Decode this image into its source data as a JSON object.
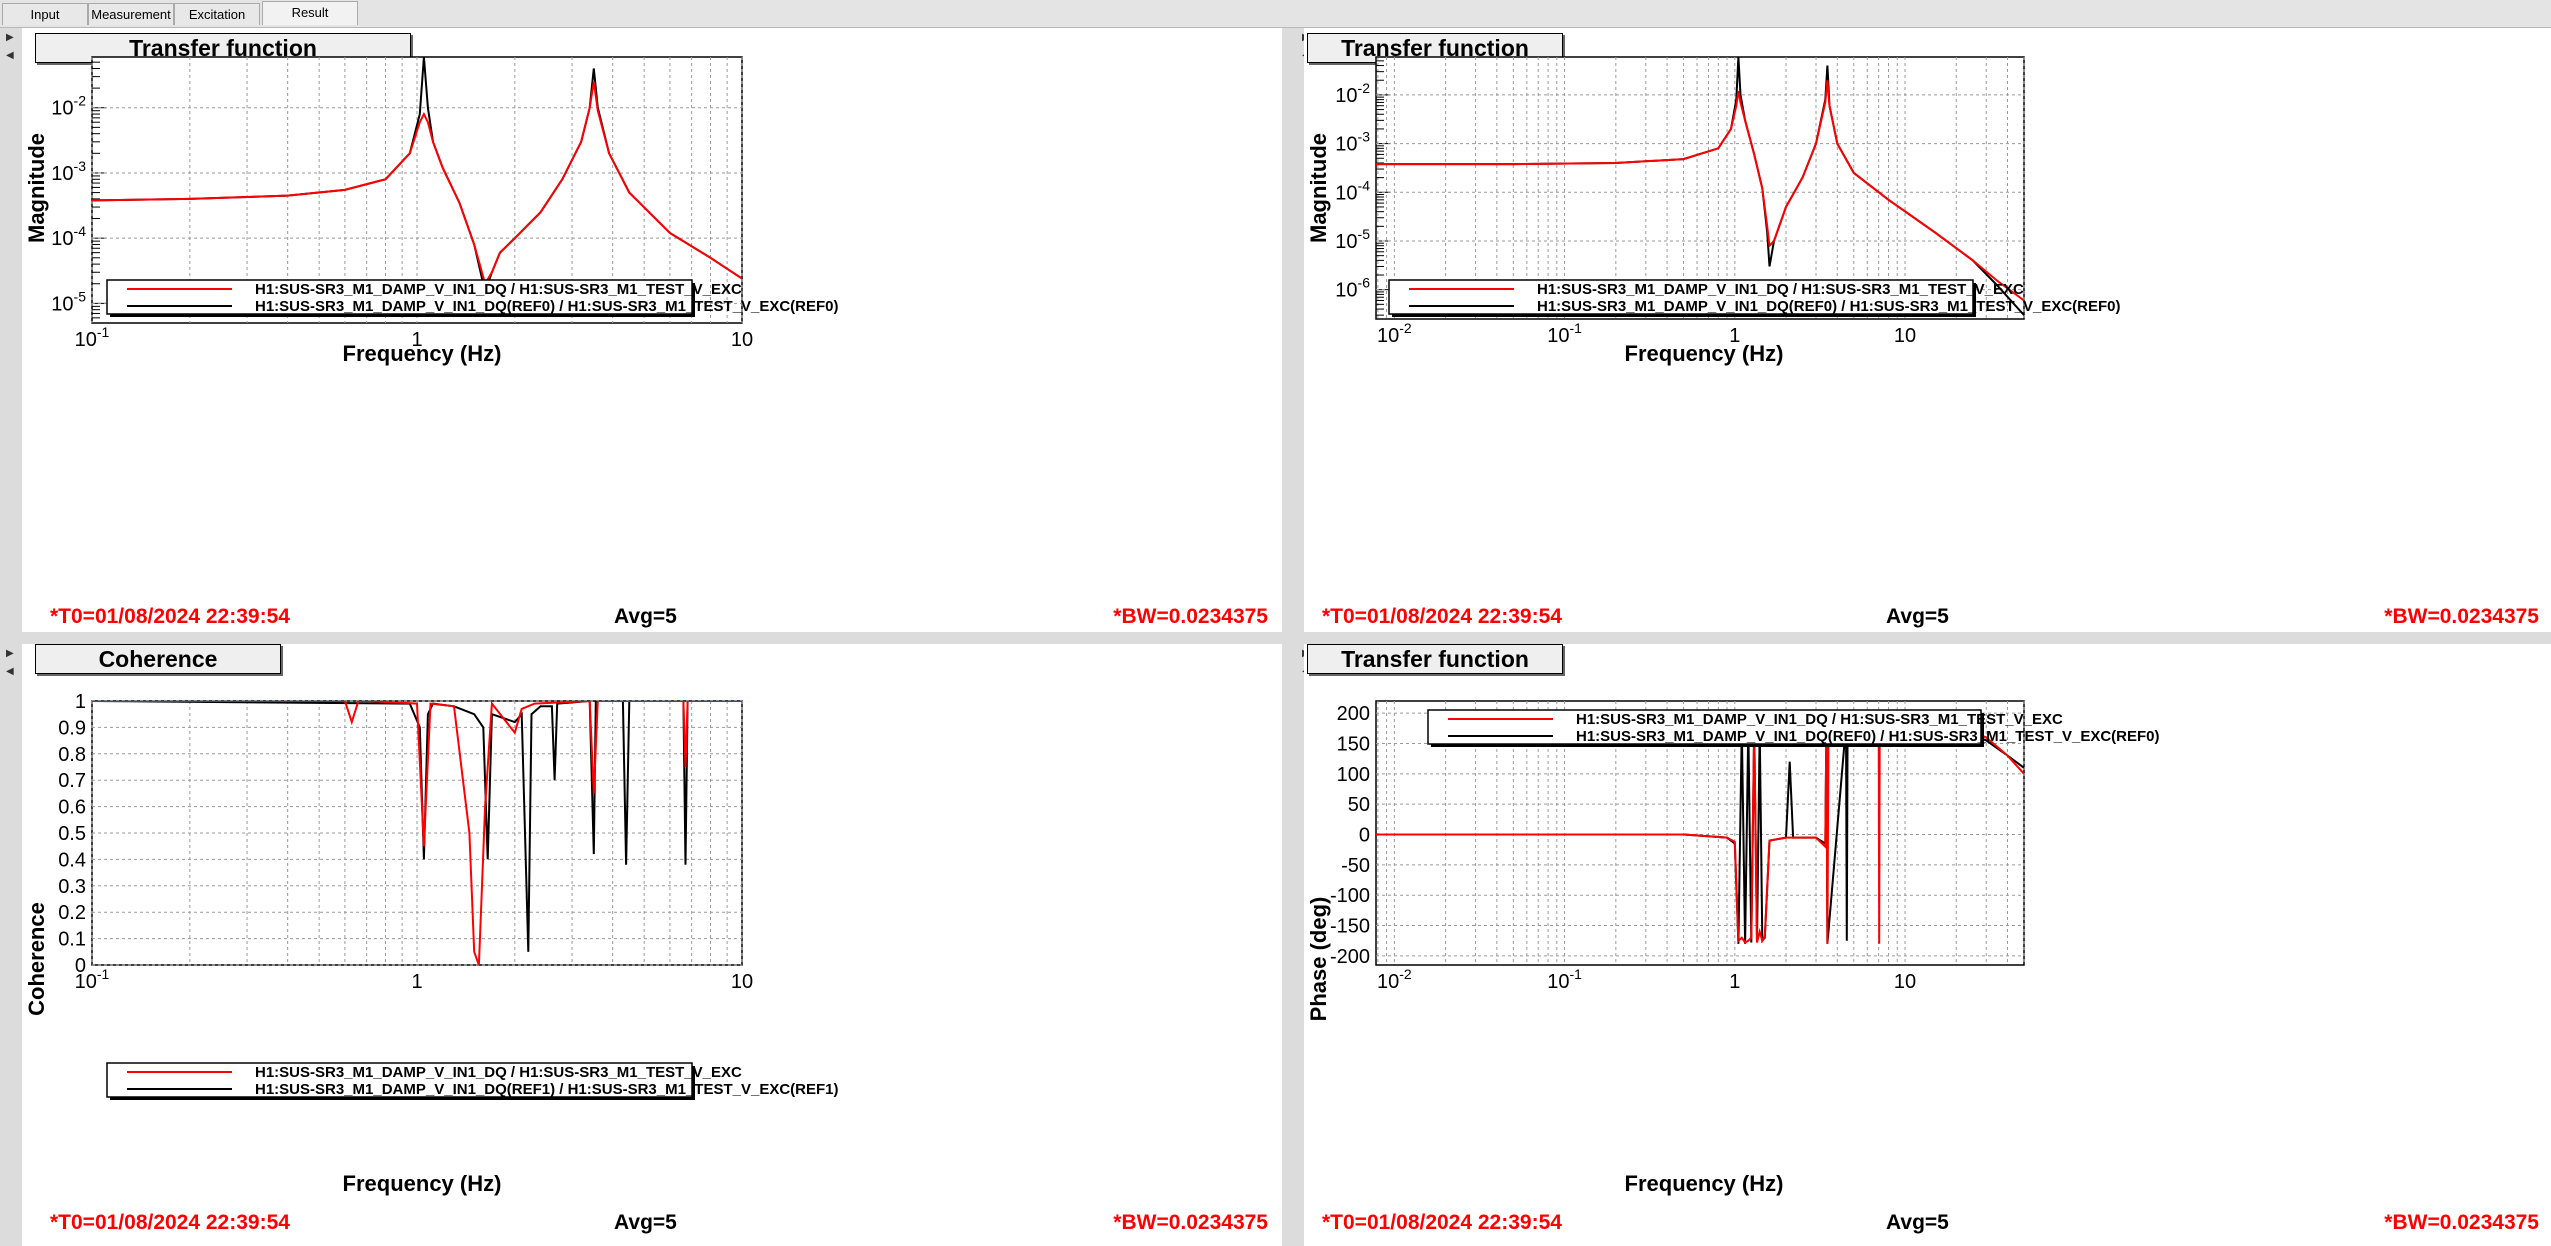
{
  "tabs": [
    {
      "label": "Input",
      "active": false
    },
    {
      "label": "Measurement",
      "active": false
    },
    {
      "label": "Excitation",
      "active": false
    },
    {
      "label": "Result",
      "active": true
    }
  ],
  "colors": {
    "ref": "#000000",
    "live": "#ff0000",
    "grid": "#9a9a9a",
    "status": "#ff0000"
  },
  "panels": [
    {
      "title": "Transfer function",
      "status": {
        "t0": "*T0=01/08/2024 22:39:54",
        "avg": "Avg=5",
        "bw": "*BW=0.0234375"
      },
      "legend": [
        "H1:SUS-SR3_M1_DAMP_V_IN1_DQ / H1:SUS-SR3_M1_TEST_V_EXC",
        "H1:SUS-SR3_M1_DAMP_V_IN1_DQ(REF0) / H1:SUS-SR3_M1_TEST_V_EXC(REF0)"
      ],
      "chart_data": {
        "type": "line",
        "xlabel": "Frequency (Hz)",
        "ylabel": "Magnitude",
        "xscale": "log",
        "yscale": "log",
        "xlim": [
          0.1,
          10
        ],
        "ylim": [
          5e-06,
          0.06
        ],
        "xticks": [
          {
            "v": 0.1,
            "label": "10^-1"
          },
          {
            "v": 1,
            "label": "1"
          },
          {
            "v": 10,
            "label": "10"
          }
        ],
        "yticks": [
          {
            "v": 1e-05,
            "label": "10^-5"
          },
          {
            "v": 0.0001,
            "label": "10^-4"
          },
          {
            "v": 0.001,
            "label": "10^-3"
          },
          {
            "v": 0.01,
            "label": "10^-2"
          }
        ],
        "legend_position": "bottom",
        "series": [
          {
            "name": "H1:SUS-SR3_M1_DAMP_V_IN1_DQ(REF0) / H1:SUS-SR3_M1_TEST_V_EXC(REF0)",
            "color": "#000000",
            "x": [
              0.1,
              0.2,
              0.4,
              0.6,
              0.8,
              0.95,
              1.02,
              1.05,
              1.08,
              1.12,
              1.2,
              1.35,
              1.5,
              1.62,
              1.7,
              1.8,
              2.0,
              2.4,
              2.8,
              3.2,
              3.4,
              3.5,
              3.6,
              3.9,
              4.5,
              6,
              8,
              10
            ],
            "y": [
              0.00038,
              0.0004,
              0.00045,
              0.00055,
              0.0008,
              0.002,
              0.008,
              0.06,
              0.01,
              0.003,
              0.0012,
              0.00035,
              8e-05,
              1.5e-05,
              3e-05,
              6e-05,
              0.0001,
              0.00025,
              0.0008,
              0.003,
              0.01,
              0.04,
              0.01,
              0.002,
              0.0005,
              0.00012,
              5e-05,
              2.4e-05
            ]
          },
          {
            "name": "H1:SUS-SR3_M1_DAMP_V_IN1_DQ / H1:SUS-SR3_M1_TEST_V_EXC",
            "color": "#ff0000",
            "x": [
              0.1,
              0.2,
              0.4,
              0.6,
              0.8,
              0.95,
              1.02,
              1.05,
              1.08,
              1.12,
              1.2,
              1.35,
              1.5,
              1.62,
              1.7,
              1.8,
              2.0,
              2.4,
              2.8,
              3.2,
              3.4,
              3.5,
              3.6,
              3.9,
              4.5,
              6,
              8,
              10
            ],
            "y": [
              0.00038,
              0.0004,
              0.00045,
              0.00055,
              0.0008,
              0.002,
              0.006,
              0.008,
              0.006,
              0.003,
              0.0012,
              0.00035,
              8e-05,
              2e-05,
              3e-05,
              6e-05,
              0.0001,
              0.00025,
              0.0008,
              0.003,
              0.01,
              0.025,
              0.009,
              0.002,
              0.0005,
              0.00012,
              5e-05,
              2.4e-05
            ]
          }
        ]
      }
    },
    {
      "title": "Transfer function",
      "status": {
        "t0": "*T0=01/08/2024 22:39:54",
        "avg": "Avg=5",
        "bw": "*BW=0.0234375"
      },
      "legend": [
        "H1:SUS-SR3_M1_DAMP_V_IN1_DQ / H1:SUS-SR3_M1_TEST_V_EXC",
        "H1:SUS-SR3_M1_DAMP_V_IN1_DQ(REF0) / H1:SUS-SR3_M1_TEST_V_EXC(REF0)"
      ],
      "chart_data": {
        "type": "line",
        "xlabel": "Frequency (Hz)",
        "ylabel": "Magnitude",
        "xscale": "log",
        "yscale": "log",
        "xlim": [
          0.0078,
          50
        ],
        "ylim": [
          2.5e-07,
          0.06
        ],
        "xticks": [
          {
            "v": 0.01,
            "label": "10^-2"
          },
          {
            "v": 0.1,
            "label": "10^-1"
          },
          {
            "v": 1,
            "label": "1"
          },
          {
            "v": 10,
            "label": "10"
          }
        ],
        "yticks": [
          {
            "v": 1e-06,
            "label": "10^-6"
          },
          {
            "v": 1e-05,
            "label": "10^-5"
          },
          {
            "v": 0.0001,
            "label": "10^-4"
          },
          {
            "v": 0.001,
            "label": "10^-3"
          },
          {
            "v": 0.01,
            "label": "10^-2"
          }
        ],
        "legend_position": "bottom",
        "series": [
          {
            "name": "H1:SUS-SR3_M1_DAMP_V_IN1_DQ(REF0) / H1:SUS-SR3_M1_TEST_V_EXC(REF0)",
            "color": "#000000",
            "x": [
              0.0078,
              0.05,
              0.2,
              0.5,
              0.8,
              0.95,
              1.02,
              1.05,
              1.08,
              1.15,
              1.3,
              1.45,
              1.55,
              1.6,
              1.7,
              2.0,
              2.5,
              3.0,
              3.4,
              3.5,
              3.6,
              4.0,
              5,
              8,
              15,
              25,
              35,
              50
            ],
            "y": [
              0.00038,
              0.00038,
              0.0004,
              0.00048,
              0.0008,
              0.002,
              0.008,
              0.06,
              0.01,
              0.003,
              0.0006,
              0.00012,
              1.5e-05,
              3e-06,
              1e-05,
              5e-05,
              0.0002,
              0.001,
              0.008,
              0.04,
              0.006,
              0.001,
              0.00025,
              7e-05,
              1.5e-05,
              4e-06,
              1.2e-06,
              3e-07
            ]
          },
          {
            "name": "H1:SUS-SR3_M1_DAMP_V_IN1_DQ / H1:SUS-SR3_M1_TEST_V_EXC",
            "color": "#ff0000",
            "x": [
              0.0078,
              0.05,
              0.2,
              0.5,
              0.8,
              0.95,
              1.02,
              1.05,
              1.08,
              1.15,
              1.3,
              1.45,
              1.55,
              1.6,
              1.7,
              2.0,
              2.5,
              3.0,
              3.4,
              3.5,
              3.6,
              4.0,
              5,
              8,
              15,
              25,
              35,
              50
            ],
            "y": [
              0.00038,
              0.00038,
              0.0004,
              0.00048,
              0.0008,
              0.002,
              0.006,
              0.012,
              0.007,
              0.003,
              0.0006,
              0.00012,
              2e-05,
              8e-06,
              1e-05,
              5e-05,
              0.0002,
              0.001,
              0.007,
              0.02,
              0.006,
              0.001,
              0.00025,
              7e-05,
              1.5e-05,
              4e-06,
              1.5e-06,
              6e-07
            ]
          }
        ]
      }
    },
    {
      "title": "Coherence",
      "status": {
        "t0": "*T0=01/08/2024 22:39:54",
        "avg": "Avg=5",
        "bw": "*BW=0.0234375"
      },
      "legend": [
        "H1:SUS-SR3_M1_DAMP_V_IN1_DQ / H1:SUS-SR3_M1_TEST_V_EXC",
        "H1:SUS-SR3_M1_DAMP_V_IN1_DQ(REF1) / H1:SUS-SR3_M1_TEST_V_EXC(REF1)"
      ],
      "chart_data": {
        "type": "line",
        "xlabel": "Frequency (Hz)",
        "ylabel": "Coherence",
        "xscale": "log",
        "yscale": "linear",
        "xlim": [
          0.1,
          10
        ],
        "ylim": [
          0,
          1
        ],
        "xticks": [
          {
            "v": 0.1,
            "label": "10^-1"
          },
          {
            "v": 1,
            "label": "1"
          },
          {
            "v": 10,
            "label": "10"
          }
        ],
        "yticks": [
          {
            "v": 0,
            "label": "0"
          },
          {
            "v": 0.1,
            "label": "0.1"
          },
          {
            "v": 0.2,
            "label": "0.2"
          },
          {
            "v": 0.3,
            "label": "0.3"
          },
          {
            "v": 0.4,
            "label": "0.4"
          },
          {
            "v": 0.5,
            "label": "0.5"
          },
          {
            "v": 0.6,
            "label": "0.6"
          },
          {
            "v": 0.7,
            "label": "0.7"
          },
          {
            "v": 0.8,
            "label": "0.8"
          },
          {
            "v": 0.9,
            "label": "0.9"
          },
          {
            "v": 1,
            "label": "1"
          }
        ],
        "legend_position": "bottom",
        "series": [
          {
            "name": "H1:SUS-SR3_M1_DAMP_V_IN1_DQ(REF1) / H1:SUS-SR3_M1_TEST_V_EXC(REF1)",
            "color": "#000000",
            "x": [
              0.1,
              0.95,
              1.02,
              1.05,
              1.08,
              1.12,
              1.3,
              1.5,
              1.6,
              1.65,
              1.7,
              2.0,
              2.1,
              2.2,
              2.25,
              2.4,
              2.6,
              2.65,
              2.7,
              3.4,
              3.5,
              3.55,
              3.6,
              4.3,
              4.4,
              4.5,
              6.6,
              6.7,
              6.8,
              10
            ],
            "y": [
              1,
              0.99,
              0.9,
              0.4,
              0.95,
              0.99,
              0.98,
              0.95,
              0.9,
              0.4,
              0.95,
              0.92,
              0.95,
              0.05,
              0.95,
              0.98,
              0.98,
              0.7,
              0.99,
              1,
              0.42,
              1,
              1,
              1,
              0.38,
              1,
              1,
              0.38,
              1,
              1
            ]
          },
          {
            "name": "H1:SUS-SR3_M1_DAMP_V_IN1_DQ / H1:SUS-SR3_M1_TEST_V_EXC",
            "color": "#ff0000",
            "x": [
              0.1,
              0.6,
              0.63,
              0.66,
              0.7,
              1.0,
              1.05,
              1.1,
              1.3,
              1.45,
              1.5,
              1.55,
              1.62,
              1.7,
              2.0,
              2.1,
              2.3,
              3.4,
              3.5,
              3.6,
              6.6,
              6.7,
              6.8,
              10
            ],
            "y": [
              1,
              1,
              0.92,
              1,
              1,
              0.99,
              0.45,
              0.99,
              0.98,
              0.5,
              0.05,
              0.0,
              0.6,
              0.99,
              0.88,
              0.97,
              0.99,
              1,
              0.65,
              1,
              1,
              0.75,
              1,
              1
            ]
          }
        ]
      }
    },
    {
      "title": "Transfer function",
      "status": {
        "t0": "*T0=01/08/2024 22:39:54",
        "avg": "Avg=5",
        "bw": "*BW=0.0234375"
      },
      "legend": [
        "H1:SUS-SR3_M1_DAMP_V_IN1_DQ / H1:SUS-SR3_M1_TEST_V_EXC",
        "H1:SUS-SR3_M1_DAMP_V_IN1_DQ(REF0) / H1:SUS-SR3_M1_TEST_V_EXC(REF0)"
      ],
      "chart_data": {
        "type": "line",
        "xlabel": "Frequency (Hz)",
        "ylabel": "Phase (deg)",
        "xscale": "log",
        "yscale": "linear",
        "xlim": [
          0.0078,
          50
        ],
        "ylim": [
          -215,
          220
        ],
        "xticks": [
          {
            "v": 0.01,
            "label": "10^-2"
          },
          {
            "v": 0.1,
            "label": "10^-1"
          },
          {
            "v": 1,
            "label": "1"
          },
          {
            "v": 10,
            "label": "10"
          }
        ],
        "yticks": [
          {
            "v": -200,
            "label": "-200"
          },
          {
            "v": -150,
            "label": "-150"
          },
          {
            "v": -100,
            "label": "-100"
          },
          {
            "v": -50,
            "label": "-50"
          },
          {
            "v": 0,
            "label": "0"
          },
          {
            "v": 50,
            "label": "50"
          },
          {
            "v": 100,
            "label": "100"
          },
          {
            "v": 150,
            "label": "150"
          },
          {
            "v": 200,
            "label": "200"
          }
        ],
        "legend_position": "top",
        "series": [
          {
            "name": "H1:SUS-SR3_M1_DAMP_V_IN1_DQ(REF0) / H1:SUS-SR3_M1_TEST_V_EXC(REF0)",
            "color": "#000000",
            "x": [
              0.0078,
              0.1,
              0.5,
              0.9,
              1.0,
              1.05,
              1.1,
              1.15,
              1.2,
              1.25,
              1.3,
              1.35,
              1.4,
              1.45,
              1.5,
              1.6,
              2.0,
              2.1,
              2.2,
              3.0,
              3.4,
              3.45,
              3.5,
              4.5,
              4.55,
              4.6,
              10,
              20,
              30,
              40,
              50
            ],
            "y": [
              0,
              0,
              0,
              -5,
              -15,
              -180,
              175,
              -180,
              178,
              -178,
              175,
              -178,
              176,
              -175,
              -170,
              -10,
              -5,
              120,
              -5,
              -5,
              -15,
              180,
              -180,
              180,
              -175,
              180,
              180,
              175,
              155,
              130,
              110
            ]
          },
          {
            "name": "H1:SUS-SR3_M1_DAMP_V_IN1_DQ / H1:SUS-SR3_M1_TEST_V_EXC",
            "color": "#ff0000",
            "x": [
              0.0078,
              0.1,
              0.5,
              0.9,
              1.0,
              1.05,
              1.1,
              1.15,
              1.2,
              1.25,
              1.3,
              1.35,
              1.4,
              1.45,
              1.5,
              1.6,
              2.0,
              3.0,
              3.4,
              3.45,
              3.5,
              3.55,
              7.0,
              7.05,
              7.1,
              10,
              20,
              30,
              40,
              50
            ],
            "y": [
              0,
              0,
              0,
              -5,
              -12,
              -175,
              -170,
              -178,
              -175,
              -170,
              180,
              -178,
              -160,
              -175,
              -168,
              -10,
              -5,
              -5,
              -20,
              180,
              -180,
              180,
              180,
              -180,
              180,
              180,
              178,
              160,
              130,
              100
            ]
          }
        ]
      }
    }
  ]
}
